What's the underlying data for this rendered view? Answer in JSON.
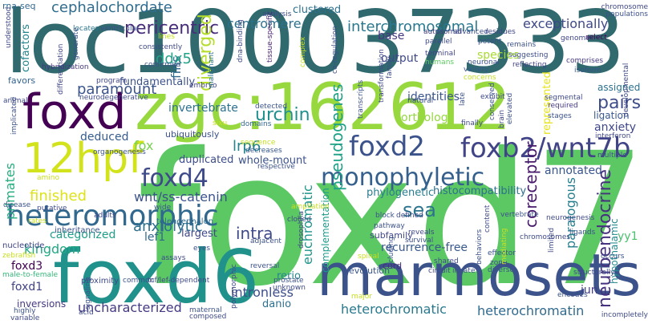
{
  "words": [
    {
      "text": "foxd7",
      "color": "#5cc863"
    },
    {
      "text": "loc100037333",
      "color": "#30696e"
    },
    {
      "text": "zgc:162612",
      "color": "#97d83f"
    },
    {
      "text": "foxd6",
      "color": "#21918c"
    },
    {
      "text": "marmosets",
      "color": "#3b528b"
    },
    {
      "text": "12hpf",
      "color": "#d2e21b"
    },
    {
      "text": "foxd",
      "color": "#440154"
    },
    {
      "text": "heteromorphic",
      "color": "#31688e"
    },
    {
      "text": "foxd2",
      "color": "#3b528b"
    },
    {
      "text": "foxb2/wnt7b",
      "color": "#414487"
    },
    {
      "text": "monophyletic",
      "color": "#35608d"
    },
    {
      "text": "foxd4",
      "color": "#3e4a89"
    },
    {
      "text": "cephalochordate",
      "color": "#2f6c8e"
    },
    {
      "text": "interchromosomal",
      "color": "#2a788e"
    },
    {
      "text": "centromere",
      "color": "#2c728e"
    },
    {
      "text": "pericentric",
      "color": "#472c7a"
    },
    {
      "text": "exceptionally",
      "color": "#3e4989"
    },
    {
      "text": "paramount",
      "color": "#3a548c"
    },
    {
      "text": "urchin",
      "color": "#21908d"
    },
    {
      "text": "pairs",
      "color": "#3e4c8a"
    },
    {
      "text": "anxiety",
      "color": "#3f4788"
    },
    {
      "text": "annotated",
      "color": "#39568c"
    },
    {
      "text": "neuroendocrine",
      "color": "#46327e"
    },
    {
      "text": "coreceptor",
      "color": "#481a6c"
    },
    {
      "text": "paralogous",
      "color": "#27808e"
    },
    {
      "text": "finished",
      "color": "#dde318"
    },
    {
      "text": "wnt/ss-catenin",
      "color": "#3b528b"
    },
    {
      "text": "deduced",
      "color": "#365c8d"
    },
    {
      "text": "fox",
      "color": "#7ad151"
    },
    {
      "text": "lrp6",
      "color": "#25848e"
    },
    {
      "text": "anxiolytic",
      "color": "#2d708e"
    },
    {
      "text": "kingdom",
      "color": "#22a884"
    },
    {
      "text": "categorized",
      "color": "#1f9e89"
    },
    {
      "text": "lef1",
      "color": "#31688e"
    },
    {
      "text": "intra",
      "color": "#3e4a89"
    },
    {
      "text": "uncharacterized",
      "color": "#443983"
    },
    {
      "text": "intronless",
      "color": "#3d4e8a"
    },
    {
      "text": "heterochromatic",
      "color": "#29798e"
    },
    {
      "text": "heterochromatin",
      "color": "#306a8e"
    },
    {
      "text": "recurrence-free",
      "color": "#38598c"
    },
    {
      "text": "euchromatic",
      "color": "#1f948c"
    },
    {
      "text": "pseudogenes",
      "color": "#1fa188"
    },
    {
      "text": "invertebrate",
      "color": "#2c718e"
    },
    {
      "text": "diverged",
      "color": "#b5de2b"
    },
    {
      "text": "fins",
      "color": "#31688e"
    },
    {
      "text": "ddx5",
      "color": "#20a386"
    },
    {
      "text": "primates",
      "color": "#27ad81"
    },
    {
      "text": "foxd3",
      "color": "#440154"
    },
    {
      "text": "foxd1",
      "color": "#414487"
    },
    {
      "text": "sea",
      "color": "#2c738e"
    },
    {
      "text": "identities",
      "color": "#3a548c"
    },
    {
      "text": "orthologs",
      "color": "#95d840"
    },
    {
      "text": "species",
      "color": "#a8db34"
    },
    {
      "text": "output",
      "color": "#3e4989"
    },
    {
      "text": "base",
      "color": "#453781"
    },
    {
      "text": "histocompatibility",
      "color": "#2d708e"
    },
    {
      "text": "phylogenetic",
      "color": "#287c8e"
    },
    {
      "text": "duplicated",
      "color": "#3d4d8a"
    },
    {
      "text": "whole-mount",
      "color": "#3b528b"
    },
    {
      "text": "largest",
      "color": "#3f4788"
    },
    {
      "text": "clustered",
      "color": "#2d708e"
    },
    {
      "text": "fundamentally",
      "color": "#3b528b"
    },
    {
      "text": "cofactors",
      "color": "#25838e"
    },
    {
      "text": "favors",
      "color": "#33638d"
    },
    {
      "text": "inversions",
      "color": "#453882"
    },
    {
      "text": "represented",
      "color": "#e5e419"
    },
    {
      "text": "ligation",
      "color": "#38588c"
    },
    {
      "text": "subfamily",
      "color": "#3f4788"
    },
    {
      "text": "complementation",
      "color": "#1e9b8a"
    },
    {
      "text": "rerio",
      "color": "#24878e"
    },
    {
      "text": "danio",
      "color": "#2e6f8e"
    },
    {
      "text": "assigned",
      "color": "#2c718e"
    },
    {
      "text": "ubiquitously",
      "color": "#3b528b"
    },
    {
      "text": "jun",
      "color": "#433e85"
    },
    {
      "text": "yy1",
      "color": "#4ac16d"
    },
    {
      "text": "hypothalamic",
      "color": "#23898e"
    },
    {
      "text": "evolution",
      "color": "#39568c"
    },
    {
      "text": "cord",
      "color": "#472d7b"
    },
    {
      "text": "proximity",
      "color": "#3e4989"
    },
    {
      "text": "inheritance",
      "color": "#3b528b"
    },
    {
      "text": "telencephalon",
      "color": "#2f6b8e"
    },
    {
      "text": "male-to-female",
      "color": "#35b779"
    },
    {
      "text": "nucleotide",
      "color": "#404588"
    },
    {
      "text": "rna-seq",
      "color": "#31688e"
    },
    {
      "text": "understood",
      "color": "#3f4788"
    },
    {
      "text": "hybridization",
      "color": "#453781"
    },
    {
      "text": "differentiation",
      "color": "#404688"
    },
    {
      "text": "locates",
      "color": "#2a768e"
    },
    {
      "text": "ventricular",
      "color": "#3b528b"
    },
    {
      "text": "program",
      "color": "#3f4889"
    },
    {
      "text": "neurodegenerative",
      "color": "#3e4c8a"
    },
    {
      "text": "organogenesis",
      "color": "#3b528b"
    },
    {
      "text": "embryo",
      "color": "#414487"
    },
    {
      "text": "detected",
      "color": "#3a548c"
    },
    {
      "text": "domains",
      "color": "#31688e"
    },
    {
      "text": "tissue-specific",
      "color": "#482173"
    },
    {
      "text": "dna-binding",
      "color": "#3e4a89"
    },
    {
      "text": "malignant",
      "color": "#2c738e"
    },
    {
      "text": "co-regulation",
      "color": "#3c4f8a"
    },
    {
      "text": "autosomal",
      "color": "#433d84"
    },
    {
      "text": "terminal",
      "color": "#414487"
    },
    {
      "text": "parallel",
      "color": "#3e4a89"
    },
    {
      "text": "humans",
      "color": "#5ec962"
    },
    {
      "text": "neuronal",
      "color": "#3b528b"
    },
    {
      "text": "variety",
      "color": "#38588c"
    },
    {
      "text": "concerns",
      "color": "#c2df23"
    },
    {
      "text": "residues",
      "color": "#3f4788"
    },
    {
      "text": "remains",
      "color": "#3b528b"
    },
    {
      "text": "suggesting",
      "color": "#3d4e8a"
    },
    {
      "text": "reflecting",
      "color": "#414487"
    },
    {
      "text": "comprises",
      "color": "#453882"
    },
    {
      "text": "isoform",
      "color": "#39568c"
    },
    {
      "text": "segmental",
      "color": "#3e4989"
    },
    {
      "text": "required",
      "color": "#443a83"
    },
    {
      "text": "stages",
      "color": "#3b528b"
    },
    {
      "text": "interferon",
      "color": "#3f4788"
    },
    {
      "text": "multiple",
      "color": "#3b528b"
    },
    {
      "text": "developmental",
      "color": "#3e4a89"
    },
    {
      "text": "populations",
      "color": "#3b528b"
    },
    {
      "text": "chromosome",
      "color": "#3f4788"
    },
    {
      "text": "select",
      "color": "#440154"
    },
    {
      "text": "genome",
      "color": "#404588"
    },
    {
      "text": "potent",
      "color": "#3b528b"
    },
    {
      "text": "advanced",
      "color": "#3d4e8a"
    },
    {
      "text": "lines",
      "color": "#c8e020"
    },
    {
      "text": "confirmed",
      "color": "#3b528b"
    },
    {
      "text": "consistently",
      "color": "#3e4989"
    },
    {
      "text": "generate",
      "color": "#3b528b"
    },
    {
      "text": "analysis",
      "color": "#3e4a89"
    },
    {
      "text": "sixu",
      "color": "#c8e020"
    },
    {
      "text": "sequence",
      "color": "#c8e020"
    },
    {
      "text": "decreases",
      "color": "#38588c"
    },
    {
      "text": "respective",
      "color": "#3b528b"
    },
    {
      "text": "ampliation",
      "color": "#c8e020"
    },
    {
      "text": "cloned",
      "color": "#3e4989"
    },
    {
      "text": "block",
      "color": "#3b528b"
    },
    {
      "text": "defined",
      "color": "#3e4a89"
    },
    {
      "text": "pathway",
      "color": "#3b528b"
    },
    {
      "text": "reveals",
      "color": "#3f4788"
    },
    {
      "text": "survival",
      "color": "#3b528b"
    },
    {
      "text": "transformation",
      "color": "#3e4a89"
    },
    {
      "text": "natural",
      "color": "#3b528b"
    },
    {
      "text": "family",
      "color": "#3d4e8a"
    },
    {
      "text": "transcripts",
      "color": "#3b528b"
    },
    {
      "text": "exhibit",
      "color": "#3e4989"
    },
    {
      "text": "late",
      "color": "#3b528b"
    },
    {
      "text": "finally",
      "color": "#3e4a89"
    },
    {
      "text": "conserved",
      "color": "#3b528b"
    },
    {
      "text": "brain",
      "color": "#3f4788"
    },
    {
      "text": "elevated",
      "color": "#3b528b"
    },
    {
      "text": "content",
      "color": "#3e4a89"
    },
    {
      "text": "vertebrate",
      "color": "#3b528b"
    },
    {
      "text": "neurogenesis",
      "color": "#3e4989"
    },
    {
      "text": "ligands",
      "color": "#3b528b"
    },
    {
      "text": "limited",
      "color": "#3e4a89"
    },
    {
      "text": "effector",
      "color": "#3b528b"
    },
    {
      "text": "zone",
      "color": "#3e4989"
    },
    {
      "text": "diverse",
      "color": "#3b528b"
    },
    {
      "text": "chromosomes",
      "color": "#3e4a89"
    },
    {
      "text": "occurs",
      "color": "#3b528b"
    },
    {
      "text": "structurally",
      "color": "#3e4989"
    },
    {
      "text": "encodes",
      "color": "#3b528b"
    },
    {
      "text": "incompletely",
      "color": "#3e4a89"
    },
    {
      "text": "behaviors",
      "color": "#3b528b"
    },
    {
      "text": "mediating",
      "color": "#c8e020"
    },
    {
      "text": "innate",
      "color": "#3b528b"
    },
    {
      "text": "circuit",
      "color": "#3e4989"
    },
    {
      "text": "including",
      "color": "#3b528b"
    },
    {
      "text": "shared",
      "color": "#3e4a89"
    },
    {
      "text": "spinal",
      "color": "#c8e020"
    },
    {
      "text": "major",
      "color": "#c8e020"
    },
    {
      "text": "reversal",
      "color": "#3b528b"
    },
    {
      "text": "drosophila",
      "color": "#3e4989"
    },
    {
      "text": "prostate",
      "color": "#3b528b"
    },
    {
      "text": "unknown",
      "color": "#3e4a89"
    },
    {
      "text": "adjacent",
      "color": "#3b528b"
    },
    {
      "text": "polymorphic",
      "color": "#3e4989"
    },
    {
      "text": "maternal",
      "color": "#3b528b"
    },
    {
      "text": "composed",
      "color": "#3e4a89"
    },
    {
      "text": "eyes",
      "color": "#3b528b"
    },
    {
      "text": "tcf/lef-dependent",
      "color": "#3e4989"
    },
    {
      "text": "common",
      "color": "#3b528b"
    },
    {
      "text": "assays",
      "color": "#3e4a89"
    },
    {
      "text": "wide",
      "color": "#3b528b"
    },
    {
      "text": "adults",
      "color": "#3e4989"
    },
    {
      "text": "rates",
      "color": "#c8e020"
    },
    {
      "text": "zebrafish",
      "color": "#c8e020"
    },
    {
      "text": "signaling",
      "color": "#3b528b"
    },
    {
      "text": "acid",
      "color": "#3e4a89"
    },
    {
      "text": "highly",
      "color": "#3b528b"
    },
    {
      "text": "variable",
      "color": "#3e4989"
    },
    {
      "text": "disease",
      "color": "#3b528b"
    },
    {
      "text": "putative",
      "color": "#3e4a89"
    },
    {
      "text": "amino",
      "color": "#c8e020"
    },
    {
      "text": "implicated",
      "color": "#3b528b"
    },
    {
      "text": "animal",
      "color": "#3e4989"
    },
    {
      "text": "complex",
      "color": "#c8e020"
    }
  ]
}
